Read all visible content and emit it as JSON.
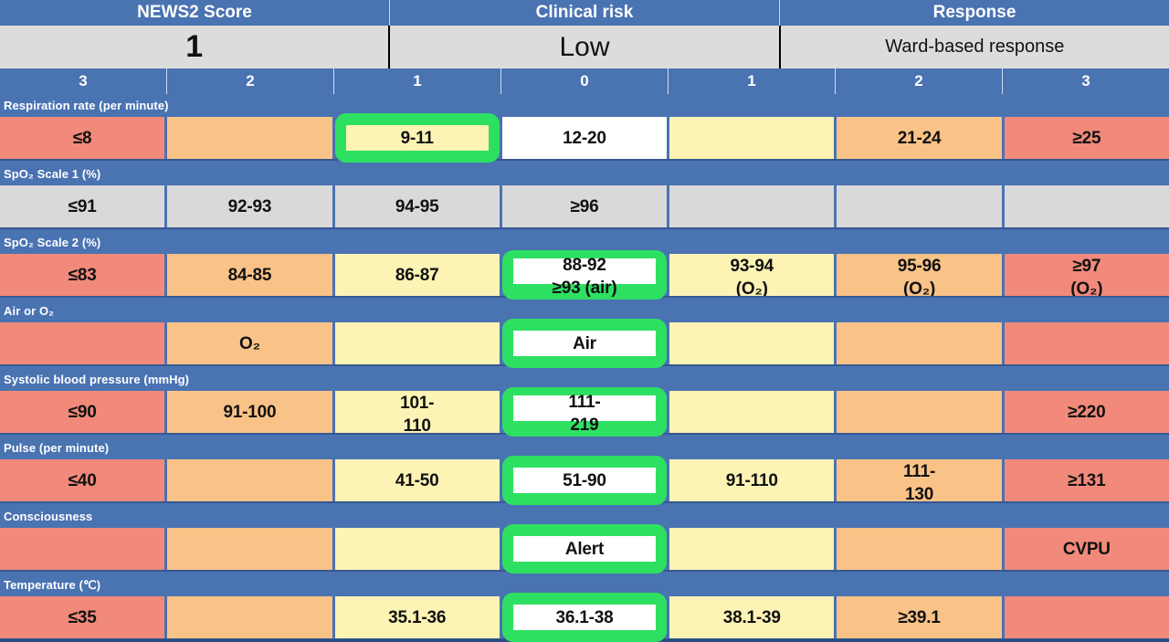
{
  "header": {
    "sections": [
      {
        "title": "NEWS2 Score",
        "value": "1"
      },
      {
        "title": "Clinical risk",
        "value": "Low"
      },
      {
        "title": "Response",
        "value": "Ward-based response"
      }
    ]
  },
  "score_row": [
    "3",
    "2",
    "1",
    "0",
    "1",
    "2",
    "3"
  ],
  "colors": {
    "blue": "#4a73b2",
    "navy": "#2b4a80",
    "gray": "#d9d9d9",
    "header_gray": "#dcdcdc",
    "red": "#f18a7b",
    "orange": "#f9c388",
    "yellow": "#fcf3b5",
    "green": "#2ee061",
    "white": "#ffffff",
    "text": "#111111"
  },
  "rows": [
    {
      "label": "Respiration rate (per minute)",
      "cells": [
        {
          "text": "≤8",
          "color": "red"
        },
        {
          "text": "",
          "color": "orange"
        },
        {
          "text": "9-11",
          "color": "yellow",
          "sel": "true",
          "inner": "yellow"
        },
        {
          "text": "12-20",
          "color": "white"
        },
        {
          "text": "",
          "color": "yellow"
        },
        {
          "text": "21-24",
          "color": "orange"
        },
        {
          "text": "≥25",
          "color": "red"
        }
      ]
    },
    {
      "label": "SpO₂ Scale 1 (%)",
      "cells": [
        {
          "text": "≤91",
          "color": "gray"
        },
        {
          "text": "92-93",
          "color": "gray"
        },
        {
          "text": "94-95",
          "color": "gray"
        },
        {
          "text": "≥96",
          "color": "gray"
        },
        {
          "text": "",
          "color": "gray"
        },
        {
          "text": "",
          "color": "gray"
        },
        {
          "text": "",
          "color": "gray"
        }
      ]
    },
    {
      "label": "SpO₂ Scale 2 (%)",
      "cells": [
        {
          "text": "≤83",
          "color": "red"
        },
        {
          "text": "84-85",
          "color": "orange"
        },
        {
          "text": "86-87",
          "color": "yellow"
        },
        {
          "text": "88-92\n≥93 (air)",
          "color": "white",
          "sel": "true",
          "inner": "white",
          "valign": "top"
        },
        {
          "text": "93-94\n(O₂)",
          "color": "yellow",
          "valign": "top"
        },
        {
          "text": "95-96\n(O₂)",
          "color": "orange",
          "valign": "top"
        },
        {
          "text": "≥97\n(O₂)",
          "color": "red",
          "valign": "top"
        }
      ]
    },
    {
      "label": "Air or O₂",
      "cells": [
        {
          "text": "",
          "color": "red"
        },
        {
          "text": "O₂",
          "color": "orange"
        },
        {
          "text": "",
          "color": "yellow"
        },
        {
          "text": "Air",
          "color": "white",
          "sel": "true",
          "inner": "white"
        },
        {
          "text": "",
          "color": "yellow"
        },
        {
          "text": "",
          "color": "orange"
        },
        {
          "text": "",
          "color": "red"
        }
      ]
    },
    {
      "label": "Systolic blood pressure (mmHg)",
      "cells": [
        {
          "text": "≤90",
          "color": "red"
        },
        {
          "text": "91-100",
          "color": "orange"
        },
        {
          "text": "101-\n110",
          "color": "yellow",
          "valign": "top"
        },
        {
          "text": "111-\n219",
          "color": "white",
          "sel": "true",
          "inner": "white",
          "valign": "top"
        },
        {
          "text": "",
          "color": "yellow"
        },
        {
          "text": "",
          "color": "orange"
        },
        {
          "text": "≥220",
          "color": "red"
        }
      ]
    },
    {
      "label": "Pulse (per minute)",
      "cells": [
        {
          "text": "≤40",
          "color": "red"
        },
        {
          "text": "",
          "color": "orange"
        },
        {
          "text": "41-50",
          "color": "yellow"
        },
        {
          "text": "51-90",
          "color": "white",
          "sel": "true",
          "inner": "white"
        },
        {
          "text": "91-110",
          "color": "yellow"
        },
        {
          "text": "111-\n130",
          "color": "orange",
          "valign": "top"
        },
        {
          "text": "≥131",
          "color": "red"
        }
      ]
    },
    {
      "label": "Consciousness",
      "cells": [
        {
          "text": "",
          "color": "red"
        },
        {
          "text": "",
          "color": "orange"
        },
        {
          "text": "",
          "color": "yellow"
        },
        {
          "text": "Alert",
          "color": "white",
          "sel": "true",
          "inner": "white"
        },
        {
          "text": "",
          "color": "yellow"
        },
        {
          "text": "",
          "color": "orange"
        },
        {
          "text": "CVPU",
          "color": "red"
        }
      ]
    },
    {
      "label": "Temperature (℃)",
      "cells": [
        {
          "text": "≤35",
          "color": "red"
        },
        {
          "text": "",
          "color": "orange"
        },
        {
          "text": "35.1-36",
          "color": "yellow"
        },
        {
          "text": "36.1-38",
          "color": "white",
          "sel": "true",
          "inner": "white"
        },
        {
          "text": "38.1-39",
          "color": "yellow"
        },
        {
          "text": "≥39.1",
          "color": "orange"
        },
        {
          "text": "",
          "color": "red"
        }
      ]
    }
  ]
}
